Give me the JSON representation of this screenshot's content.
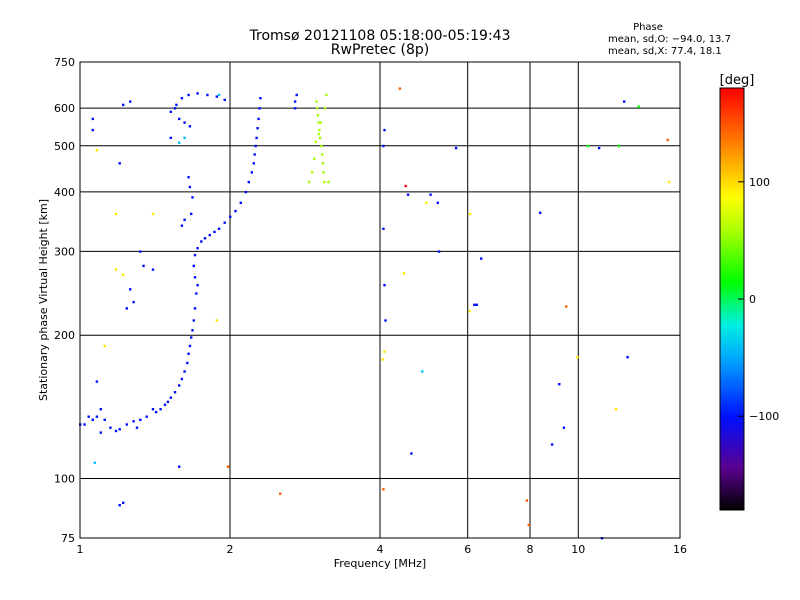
{
  "chart_data": {
    "type": "scatter",
    "title": "Tromsø 20121108 05:18:00-05:19:43",
    "subtitle": "RwPretec (8p)",
    "xlabel": "Frequency [MHz]",
    "ylabel": "Stationary phase Virtual Height [km]",
    "x_scale": "log",
    "y_scale": "log",
    "xlim": [
      1,
      16
    ],
    "ylim": [
      75,
      750
    ],
    "x_ticks": [
      1,
      2,
      4,
      6,
      8,
      10,
      16
    ],
    "y_ticks": [
      75,
      100,
      200,
      300,
      400,
      500,
      600,
      750
    ],
    "grid": true,
    "phase_stats": {
      "title": "Phase",
      "line1": "mean, sd,O: −94.0, 13.7",
      "line2": "mean, sd,X:  77.4, 18.1"
    },
    "colorbar": {
      "label": "[deg]",
      "range": [
        -180,
        180
      ],
      "ticks": [
        100,
        0,
        -100
      ]
    },
    "series": [
      {
        "phase": -100,
        "points": [
          [
            1.02,
            130
          ],
          [
            1.04,
            135
          ],
          [
            1.06,
            133
          ],
          [
            1.08,
            135
          ],
          [
            1.1,
            140
          ],
          [
            1.12,
            133
          ],
          [
            1.15,
            128
          ],
          [
            1.18,
            126
          ],
          [
            1.2,
            127
          ],
          [
            1.24,
            130
          ],
          [
            1.28,
            132
          ],
          [
            1.32,
            133
          ],
          [
            1.36,
            135
          ],
          [
            1.4,
            140
          ],
          [
            1.42,
            138
          ],
          [
            1.45,
            140
          ],
          [
            1.48,
            143
          ],
          [
            1.5,
            145
          ],
          [
            1.52,
            148
          ],
          [
            1.55,
            152
          ],
          [
            1.58,
            157
          ],
          [
            1.6,
            162
          ],
          [
            1.62,
            168
          ],
          [
            1.64,
            175
          ],
          [
            1.65,
            183
          ],
          [
            1.66,
            190
          ],
          [
            1.67,
            198
          ],
          [
            1.68,
            205
          ],
          [
            1.69,
            215
          ],
          [
            1.7,
            228
          ],
          [
            1.71,
            245
          ],
          [
            1.72,
            255
          ],
          [
            1.7,
            265
          ],
          [
            1.69,
            280
          ],
          [
            1.7,
            295
          ],
          [
            1.72,
            305
          ],
          [
            1.75,
            315
          ],
          [
            1.78,
            320
          ],
          [
            1.82,
            325
          ],
          [
            1.86,
            330
          ],
          [
            1.9,
            335
          ],
          [
            1.95,
            345
          ],
          [
            2.0,
            355
          ],
          [
            2.05,
            365
          ],
          [
            2.1,
            380
          ],
          [
            2.15,
            400
          ],
          [
            2.18,
            420
          ],
          [
            2.21,
            440
          ],
          [
            2.23,
            460
          ],
          [
            2.24,
            480
          ],
          [
            2.25,
            500
          ],
          [
            2.26,
            520
          ],
          [
            2.27,
            545
          ],
          [
            2.28,
            570
          ],
          [
            2.29,
            600
          ],
          [
            2.3,
            630
          ],
          [
            1.52,
            590
          ],
          [
            1.56,
            610
          ],
          [
            1.6,
            630
          ],
          [
            1.65,
            640
          ],
          [
            1.72,
            645
          ],
          [
            1.8,
            640
          ],
          [
            1.88,
            635
          ],
          [
            1.95,
            625
          ],
          [
            1.58,
            570
          ],
          [
            1.62,
            560
          ],
          [
            1.66,
            550
          ],
          [
            1.55,
            600
          ],
          [
            2.7,
            600
          ],
          [
            2.7,
            620
          ],
          [
            2.72,
            640
          ],
          [
            1.65,
            430
          ],
          [
            1.66,
            410
          ],
          [
            1.68,
            390
          ],
          [
            1.67,
            360
          ],
          [
            1.62,
            350
          ],
          [
            1.6,
            340
          ],
          [
            1.06,
            570
          ],
          [
            1.06,
            540
          ],
          [
            1.2,
            460
          ],
          [
            1.22,
            610
          ],
          [
            1.26,
            620
          ],
          [
            1.32,
            300
          ],
          [
            1.34,
            280
          ],
          [
            1.4,
            275
          ],
          [
            1.52,
            520
          ],
          [
            1.26,
            250
          ],
          [
            1.28,
            235
          ],
          [
            1.24,
            228
          ],
          [
            1.0,
            130
          ],
          [
            1.08,
            160
          ],
          [
            1.1,
            125
          ],
          [
            1.3,
            128
          ],
          [
            1.2,
            88
          ],
          [
            1.22,
            89
          ],
          [
            1.58,
            106
          ],
          [
            4.08,
            540
          ],
          [
            4.06,
            335
          ],
          [
            4.1,
            215
          ],
          [
            4.08,
            255
          ],
          [
            4.06,
            500
          ],
          [
            4.55,
            395
          ],
          [
            4.62,
            113
          ],
          [
            5.22,
            380
          ],
          [
            5.05,
            395
          ],
          [
            5.25,
            300
          ],
          [
            5.68,
            495
          ],
          [
            6.18,
            232
          ],
          [
            6.25,
            232
          ],
          [
            6.38,
            290
          ],
          [
            8.38,
            362
          ],
          [
            8.85,
            118
          ],
          [
            9.15,
            158
          ],
          [
            9.35,
            128
          ],
          [
            11.0,
            495
          ],
          [
            11.15,
            75
          ],
          [
            12.35,
            620
          ],
          [
            12.55,
            180
          ]
        ]
      },
      {
        "phase": 50,
        "points": [
          [
            2.98,
            620
          ],
          [
            2.99,
            600
          ],
          [
            3.0,
            580
          ],
          [
            3.01,
            560
          ],
          [
            3.02,
            540
          ],
          [
            3.03,
            520
          ],
          [
            3.05,
            500
          ],
          [
            3.06,
            480
          ],
          [
            3.07,
            460
          ],
          [
            3.08,
            440
          ],
          [
            3.09,
            420
          ],
          [
            2.92,
            440
          ],
          [
            2.95,
            470
          ],
          [
            2.97,
            510
          ],
          [
            3.01,
            530
          ],
          [
            3.04,
            560
          ],
          [
            3.1,
            600
          ],
          [
            3.12,
            640
          ],
          [
            3.15,
            420
          ],
          [
            2.88,
            420
          ]
        ]
      },
      {
        "phase": 0,
        "points": [
          [
            13.2,
            605
          ],
          [
            10.45,
            500
          ],
          [
            12.05,
            500
          ]
        ]
      },
      {
        "phase": -40,
        "points": [
          [
            1.58,
            508
          ],
          [
            1.62,
            520
          ],
          [
            1.9,
            640
          ],
          [
            1.07,
            108
          ],
          [
            4.86,
            168
          ]
        ]
      },
      {
        "phase": 110,
        "points": [
          [
            1.18,
            360
          ],
          [
            1.4,
            360
          ],
          [
            1.08,
            490
          ],
          [
            1.22,
            268
          ],
          [
            1.18,
            275
          ],
          [
            1.12,
            190
          ],
          [
            4.08,
            185
          ],
          [
            4.05,
            178
          ],
          [
            4.95,
            380
          ],
          [
            4.46,
            270
          ],
          [
            6.06,
            360
          ],
          [
            6.05,
            225
          ],
          [
            9.95,
            180
          ],
          [
            11.9,
            140
          ],
          [
            15.2,
            420
          ],
          [
            1.88,
            215
          ]
        ]
      },
      {
        "phase": 160,
        "points": [
          [
            1.98,
            106
          ],
          [
            2.52,
            93
          ],
          [
            4.06,
            95
          ],
          [
            4.38,
            660
          ],
          [
            7.88,
            90
          ],
          [
            7.95,
            80
          ],
          [
            9.45,
            230
          ],
          [
            15.1,
            515
          ]
        ]
      },
      {
        "phase": 180,
        "points": [
          [
            4.5,
            412
          ]
        ]
      }
    ]
  }
}
